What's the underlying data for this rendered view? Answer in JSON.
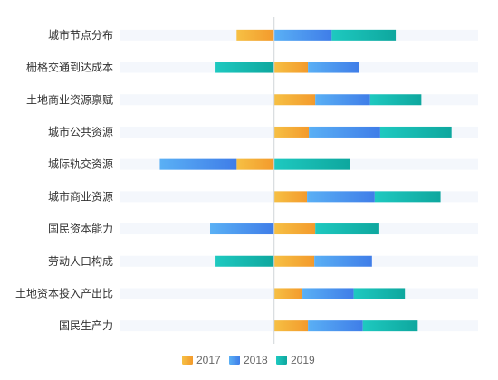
{
  "chart_data": {
    "type": "bar",
    "orientation": "horizontal",
    "stacked": true,
    "categories": [
      "城市节点分布",
      "栅格交通到达成本",
      "土地商业资源禀赋",
      "城市公共资源",
      "城际轨交资源",
      "城市商业资源",
      "国民资本能力",
      "劳动人口构成",
      "土地资本投入产出比",
      "国民生产力"
    ],
    "series": [
      {
        "name": "2017",
        "values": [
          -41,
          37,
          45,
          38,
          -41,
          36,
          45,
          44,
          31,
          37
        ]
      },
      {
        "name": "2018",
        "values": [
          63,
          56,
          60,
          78,
          -84,
          74,
          -70,
          63,
          56,
          60
        ]
      },
      {
        "name": "2019",
        "values": [
          70,
          -64,
          56,
          78,
          83,
          72,
          70,
          -64,
          56,
          60
        ]
      }
    ],
    "xlim": [
      -168,
      223
    ],
    "legend_position": "bottom",
    "background_bands": true,
    "colors": {
      "2017": [
        "#f6c044",
        "#f39a2c"
      ],
      "2018": [
        "#5ab0f5",
        "#3f7de8"
      ],
      "2019": [
        "#1ec9c0",
        "#0ea79e"
      ],
      "band": "#f4f7fc",
      "zero_line": "#d0d4d9"
    }
  }
}
